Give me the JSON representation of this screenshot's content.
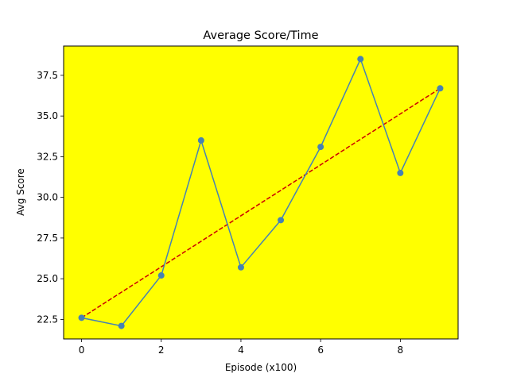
{
  "chart_data": {
    "type": "line",
    "title": "Average Score/Time",
    "xlabel": "Episode (x100)",
    "ylabel": "Avg Score",
    "x": [
      0,
      1,
      2,
      3,
      4,
      5,
      6,
      7,
      8,
      9
    ],
    "xlim": [
      -0.45,
      9.45
    ],
    "ylim": [
      21.3,
      39.3
    ],
    "x_ticks": [
      0,
      2,
      4,
      6,
      8
    ],
    "x_tick_labels": [
      "0",
      "2",
      "4",
      "6",
      "8"
    ],
    "y_ticks": [
      22.5,
      25.0,
      27.5,
      30.0,
      32.5,
      35.0,
      37.5
    ],
    "y_tick_labels": [
      "22.5",
      "25.0",
      "27.5",
      "30.0",
      "32.5",
      "35.0",
      "37.5"
    ],
    "grid": false,
    "legend": "none",
    "series": [
      {
        "style": "solid line with circle markers",
        "color": "#4682b4",
        "values": [
          22.6,
          22.1,
          25.2,
          33.5,
          25.7,
          28.6,
          33.1,
          38.5,
          31.5,
          36.7
        ]
      },
      {
        "style": "dashed trend line",
        "color": "#cc0000",
        "values": [
          22.6,
          24.17,
          25.73,
          27.3,
          28.87,
          30.43,
          32.0,
          33.57,
          35.13,
          36.7
        ]
      }
    ],
    "plot_background": "#ffff00"
  }
}
